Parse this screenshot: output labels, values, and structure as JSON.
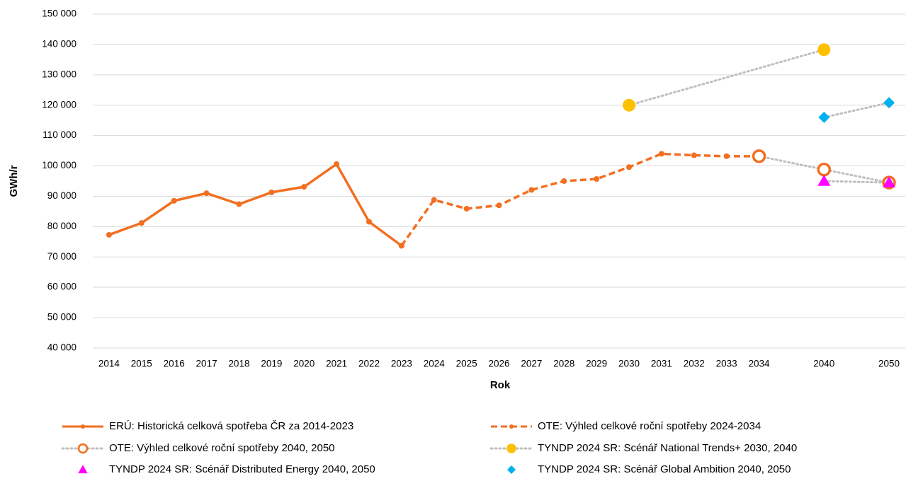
{
  "chart_data": {
    "type": "line",
    "xlabel": "Rok",
    "ylabel": "GWh/r",
    "categories": [
      "2014",
      "2015",
      "2016",
      "2017",
      "2018",
      "2019",
      "2020",
      "2021",
      "2022",
      "2023",
      "2024",
      "2025",
      "2026",
      "2027",
      "2028",
      "2029",
      "2030",
      "2031",
      "2032",
      "2033",
      "2034",
      null,
      "2040",
      null,
      "2050"
    ],
    "ylim": [
      40000,
      150000
    ],
    "yticks": [
      {
        "value": 40000,
        "label": "40 000"
      },
      {
        "value": 50000,
        "label": "50 000"
      },
      {
        "value": 60000,
        "label": "60 000"
      },
      {
        "value": 70000,
        "label": "70 000"
      },
      {
        "value": 80000,
        "label": "80 000"
      },
      {
        "value": 90000,
        "label": "90 000"
      },
      {
        "value": 100000,
        "label": "100 000"
      },
      {
        "value": 110000,
        "label": "110 000"
      },
      {
        "value": 120000,
        "label": "120 000"
      },
      {
        "value": 130000,
        "label": "130 000"
      },
      {
        "value": 140000,
        "label": "140 000"
      },
      {
        "value": 150000,
        "label": "150 000"
      }
    ],
    "grid": true,
    "legend": "bottom",
    "series": [
      {
        "name": "ERÚ: Historická celková spotřeba ČR za 2014-2023",
        "color": "#f26f21",
        "line_color": "#f26f21",
        "line": "solid",
        "marker": "circle",
        "connect_gaps": false,
        "values": [
          77300,
          81200,
          88500,
          91000,
          87400,
          91300,
          93100,
          100600,
          81600,
          73700,
          null,
          null,
          null,
          null,
          null,
          null,
          null,
          null,
          null,
          null,
          null,
          null,
          null,
          null,
          null
        ]
      },
      {
        "name": "OTE: Výhled celkové roční spotřeby 2024-2034",
        "color": "#f26f21",
        "line_color": "#f26f21",
        "line": "dash",
        "marker": "circle",
        "connect_gaps": false,
        "values": [
          null,
          null,
          null,
          null,
          null,
          null,
          null,
          null,
          null,
          73700,
          88800,
          85900,
          87000,
          92100,
          95000,
          95700,
          99600,
          104000,
          103500,
          103200,
          103200,
          null,
          null,
          null,
          null
        ]
      },
      {
        "name": "OTE: Výhled celkové roční spotřeby 2040, 2050",
        "color": "#f26f21",
        "line_color": "#bfbfbf",
        "line": "dot",
        "marker": "circle-open",
        "connect_gaps": true,
        "values": [
          null,
          null,
          null,
          null,
          null,
          null,
          null,
          null,
          null,
          null,
          null,
          null,
          null,
          null,
          null,
          null,
          null,
          null,
          null,
          null,
          103200,
          null,
          98800,
          null,
          94500
        ]
      },
      {
        "name": "TYNDP 2024 SR: Scénář National Trends+ 2030, 2040",
        "color": "#ffc000",
        "line_color": "#bfbfbf",
        "line": "dot",
        "marker": "circle-big",
        "connect_gaps": true,
        "values": [
          null,
          null,
          null,
          null,
          null,
          null,
          null,
          null,
          null,
          null,
          null,
          null,
          null,
          null,
          null,
          null,
          120000,
          null,
          null,
          null,
          null,
          null,
          138300,
          null,
          null
        ]
      },
      {
        "name": "TYNDP 2024 SR: Scénář Distributed Energy 2040, 2050",
        "color": "#ff00ff",
        "line_color": "#bfbfbf",
        "line": "dot",
        "marker": "triangle",
        "connect_gaps": true,
        "values": [
          null,
          null,
          null,
          null,
          null,
          null,
          null,
          null,
          null,
          null,
          null,
          null,
          null,
          null,
          null,
          null,
          null,
          null,
          null,
          null,
          null,
          null,
          95000,
          null,
          94500
        ]
      },
      {
        "name": "TYNDP 2024 SR: Scénář Global Ambition 2040, 2050",
        "color": "#00b0f0",
        "line_color": "#bfbfbf",
        "line": "dot",
        "marker": "diamond",
        "connect_gaps": true,
        "values": [
          null,
          null,
          null,
          null,
          null,
          null,
          null,
          null,
          null,
          null,
          null,
          null,
          null,
          null,
          null,
          null,
          null,
          null,
          null,
          null,
          null,
          null,
          116000,
          null,
          120800
        ]
      }
    ]
  }
}
